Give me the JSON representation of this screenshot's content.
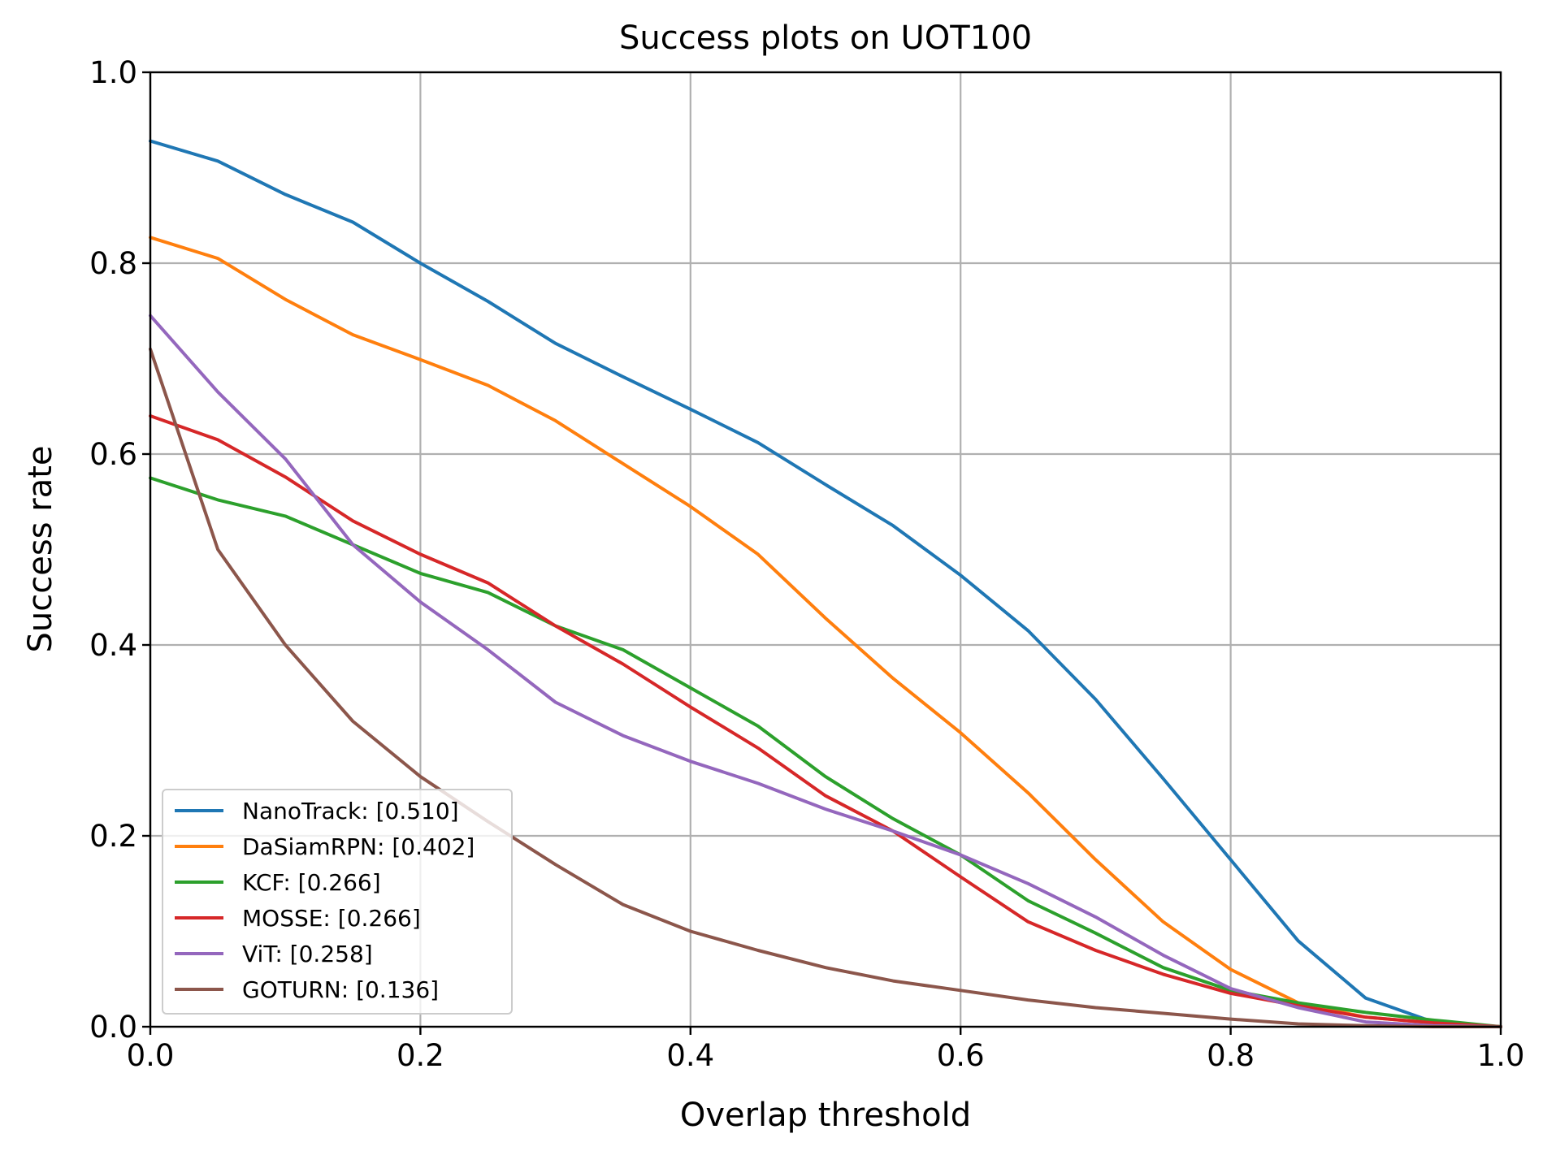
{
  "chart_data": {
    "type": "line",
    "title": "Success plots on UOT100",
    "xlabel": "Overlap threshold",
    "ylabel": "Success rate",
    "xlim": [
      0,
      1
    ],
    "ylim": [
      0,
      1
    ],
    "xticks": [
      "0.0",
      "0.2",
      "0.4",
      "0.6",
      "0.8",
      "1.0"
    ],
    "yticks": [
      "0.0",
      "0.2",
      "0.4",
      "0.6",
      "0.8",
      "1.0"
    ],
    "grid": true,
    "legend_position": "lower-left",
    "x": [
      0.0,
      0.05,
      0.1,
      0.15,
      0.2,
      0.25,
      0.3,
      0.35,
      0.4,
      0.45,
      0.5,
      0.55,
      0.6,
      0.65,
      0.7,
      0.75,
      0.8,
      0.85,
      0.9,
      0.95,
      1.0
    ],
    "series": [
      {
        "name": "NanoTrack: [0.510]",
        "color": "#1f77b4",
        "values": [
          0.928,
          0.907,
          0.872,
          0.843,
          0.8,
          0.76,
          0.716,
          0.681,
          0.647,
          0.612,
          0.568,
          0.525,
          0.473,
          0.415,
          0.343,
          0.26,
          0.175,
          0.09,
          0.03,
          0.005,
          0.0
        ]
      },
      {
        "name": "DaSiamRPN: [0.402]",
        "color": "#ff7f0e",
        "values": [
          0.827,
          0.805,
          0.762,
          0.725,
          0.699,
          0.672,
          0.635,
          0.59,
          0.545,
          0.495,
          0.428,
          0.365,
          0.308,
          0.245,
          0.175,
          0.11,
          0.06,
          0.025,
          0.01,
          0.004,
          0.0
        ]
      },
      {
        "name": "KCF: [0.266]",
        "color": "#2ca02c",
        "values": [
          0.575,
          0.552,
          0.535,
          0.505,
          0.475,
          0.455,
          0.42,
          0.395,
          0.355,
          0.315,
          0.262,
          0.218,
          0.18,
          0.132,
          0.098,
          0.062,
          0.038,
          0.025,
          0.015,
          0.007,
          0.0
        ]
      },
      {
        "name": "MOSSE: [0.266]",
        "color": "#d62728",
        "values": [
          0.64,
          0.615,
          0.576,
          0.53,
          0.495,
          0.465,
          0.42,
          0.38,
          0.335,
          0.292,
          0.242,
          0.205,
          0.157,
          0.11,
          0.08,
          0.055,
          0.035,
          0.022,
          0.01,
          0.004,
          0.0
        ]
      },
      {
        "name": "ViT: [0.258]",
        "color": "#9467bd",
        "values": [
          0.745,
          0.665,
          0.595,
          0.505,
          0.445,
          0.395,
          0.34,
          0.305,
          0.278,
          0.255,
          0.228,
          0.205,
          0.18,
          0.15,
          0.115,
          0.075,
          0.04,
          0.02,
          0.005,
          0.001,
          0.0
        ]
      },
      {
        "name": "GOTURN: [0.136]",
        "color": "#8c564b",
        "values": [
          0.71,
          0.5,
          0.4,
          0.32,
          0.262,
          0.215,
          0.17,
          0.128,
          0.1,
          0.08,
          0.062,
          0.048,
          0.038,
          0.028,
          0.02,
          0.014,
          0.008,
          0.003,
          0.001,
          0.0,
          0.0
        ]
      }
    ]
  }
}
